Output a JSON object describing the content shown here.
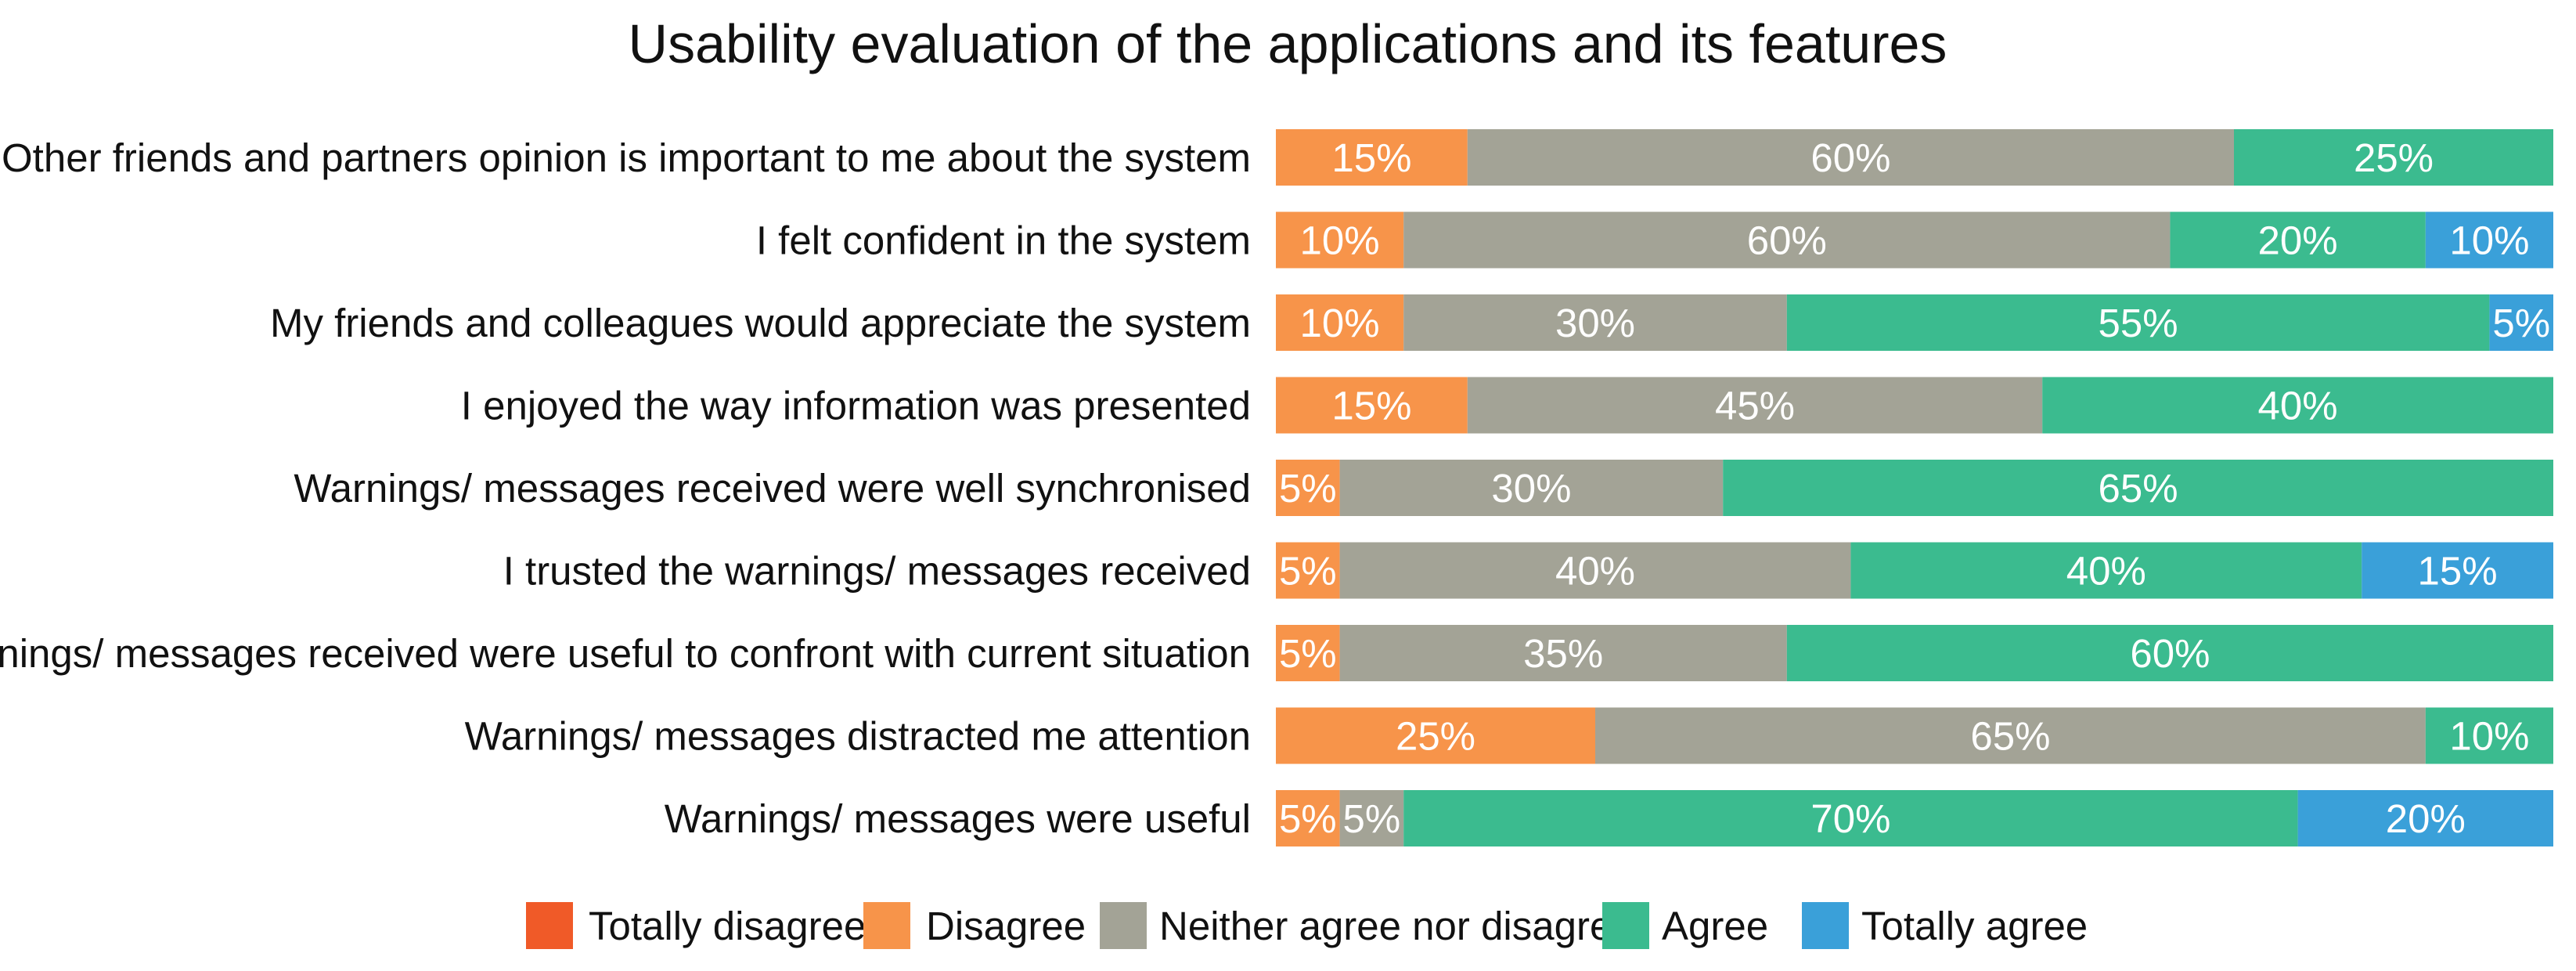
{
  "chart_data": {
    "type": "bar",
    "orientation": "horizontal",
    "stacked": true,
    "percent": true,
    "title": "Usability evaluation of the applications and its features",
    "categories": [
      "Other friends and partners opinion is important to me about the system",
      "I felt confident in the system",
      "My friends and colleagues would appreciate the system",
      "I enjoyed the way information was presented",
      "Warnings/ messages received were well synchronised",
      "I trusted the warnings/ messages received",
      "Warnings/ messages received were useful to confront with current situation",
      "Warnings/ messages distracted me attention",
      "Warnings/ messages were useful"
    ],
    "series": [
      {
        "name": "Totally disagree",
        "color": "#f05a28",
        "values": [
          0,
          0,
          0,
          0,
          0,
          0,
          0,
          0,
          0
        ]
      },
      {
        "name": "Disagree",
        "color": "#f7944a",
        "values": [
          15,
          10,
          10,
          15,
          5,
          5,
          5,
          25,
          5
        ]
      },
      {
        "name": "Neither agree nor disagree",
        "color": "#a3a396",
        "values": [
          60,
          60,
          30,
          45,
          30,
          40,
          35,
          65,
          5
        ]
      },
      {
        "name": "Agree",
        "color": "#3bbb8f",
        "values": [
          25,
          20,
          55,
          40,
          65,
          40,
          60,
          10,
          70
        ]
      },
      {
        "name": "Totally agree",
        "color": "#3aa0d9",
        "values": [
          0,
          10,
          5,
          0,
          0,
          15,
          0,
          0,
          20
        ]
      }
    ],
    "xlim": [
      0,
      100
    ],
    "value_suffix": "%",
    "legend_position": "bottom"
  }
}
